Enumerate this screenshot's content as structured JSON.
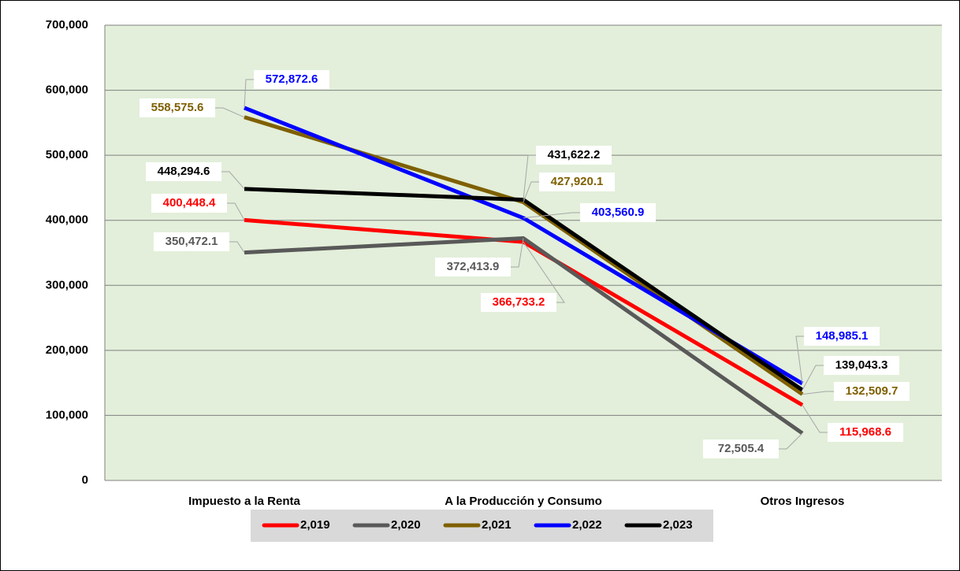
{
  "chart_data": {
    "type": "line",
    "categories": [
      "Impuesto a la Renta",
      "A la Producción y Consumo",
      "Otros Ingresos"
    ],
    "ylim": [
      0,
      700000
    ],
    "yticks": [
      0,
      {
        "value": 100000,
        "label": "100,000"
      },
      {
        "value": 200000,
        "label": "200,000"
      },
      {
        "value": 300000,
        "label": "300,000"
      },
      {
        "value": 400000,
        "label": "400,000"
      },
      {
        "value": 500000,
        "label": "500,000"
      },
      {
        "value": 600000,
        "label": "600,000"
      },
      {
        "value": 700000,
        "label": "700,000"
      }
    ],
    "grid": true,
    "legend": "bottom",
    "series": [
      {
        "name": "2,019",
        "color": "#ff0000",
        "values": [
          400448.4,
          366733.2,
          115968.6
        ],
        "value_labels": [
          "400,448.4",
          "366,733.2",
          "115,968.6"
        ]
      },
      {
        "name": "2,020",
        "color": "#595959",
        "values": [
          350472.1,
          372413.9,
          72505.4
        ],
        "value_labels": [
          "350,472.1",
          "372,413.9",
          "72,505.4"
        ]
      },
      {
        "name": "2,021",
        "color": "#7f6000",
        "values": [
          558575.6,
          427920.1,
          132509.7
        ],
        "value_labels": [
          "558,575.6",
          "427,920.1",
          "132,509.7"
        ]
      },
      {
        "name": "2,022",
        "color": "#0000ff",
        "values": [
          572872.6,
          403560.9,
          148985.1
        ],
        "value_labels": [
          "572,872.6",
          "403,560.9",
          "148,985.1"
        ]
      },
      {
        "name": "2,023",
        "color": "#000000",
        "values": [
          448294.6,
          431622.2,
          139043.3
        ],
        "value_labels": [
          "448,294.6",
          "431,622.2",
          "139,043.3"
        ]
      }
    ]
  }
}
